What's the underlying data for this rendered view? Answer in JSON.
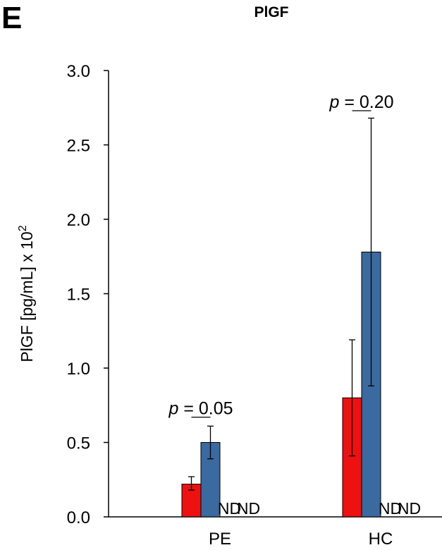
{
  "chart_data": {
    "type": "bar",
    "panel_label": "E",
    "title": "PlGF",
    "ylabel_main": "PlGF [pg/mL] x 10",
    "ylabel_sup": "2",
    "xlabel": "",
    "ylim": [
      0,
      3.0
    ],
    "yticks": [
      "0.0",
      "0.5",
      "1.0",
      "1.5",
      "2.0",
      "2.5",
      "3.0"
    ],
    "grid": false,
    "categories": [
      "PE",
      "HC"
    ],
    "series": [
      {
        "color": "#ee1111",
        "values": [
          0.22,
          0.8
        ],
        "err_low": [
          0.18,
          0.41
        ],
        "err_high": [
          0.27,
          1.19
        ]
      },
      {
        "color": "#3b6aa0",
        "values": [
          0.5,
          1.78
        ],
        "err_low": [
          0.39,
          0.88
        ],
        "err_high": [
          0.61,
          2.68
        ]
      },
      {
        "label": "ND",
        "values": [
          null,
          null
        ]
      },
      {
        "label": "ND",
        "values": [
          null,
          null
        ]
      }
    ],
    "annotations": [
      {
        "italic": "p",
        "text": " = 0.05",
        "category": "PE",
        "y": 0.67
      },
      {
        "italic": "p",
        "text": " = 0.20",
        "category": "HC",
        "y": 2.73
      }
    ]
  }
}
